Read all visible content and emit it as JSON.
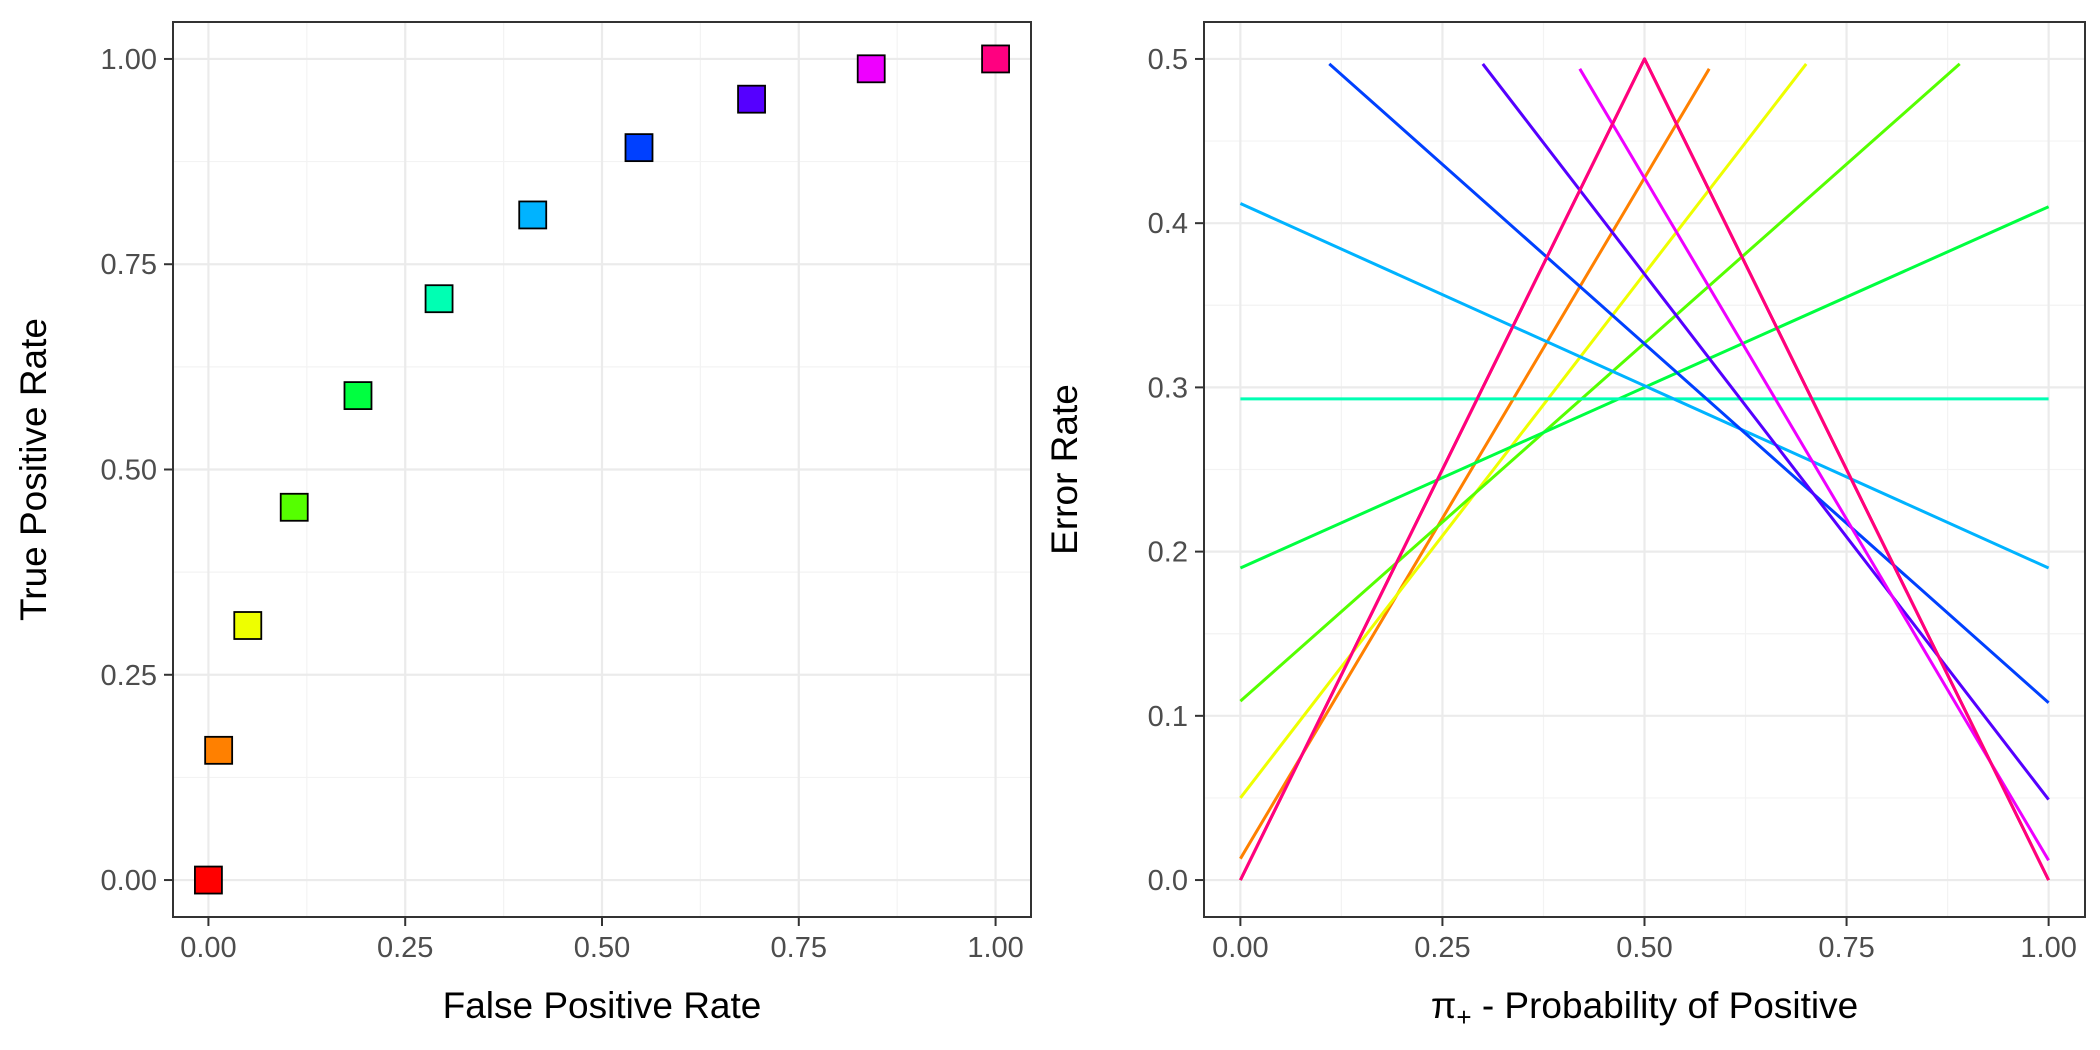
{
  "chart_data": [
    {
      "type": "scatter",
      "xlabel": "False Positive Rate",
      "ylabel": "True Positive Rate",
      "xlim": [
        -0.045,
        1.045
      ],
      "ylim": [
        -0.045,
        1.045
      ],
      "xticks": [
        0,
        0.25,
        0.5,
        0.75,
        1
      ],
      "xtick_labels": [
        "0.00",
        "0.25",
        "0.50",
        "0.75",
        "1.00"
      ],
      "yticks": [
        0,
        0.25,
        0.5,
        0.75,
        1
      ],
      "ytick_labels": [
        "0.00",
        "0.25",
        "0.50",
        "0.75",
        "1.00"
      ],
      "grid": true,
      "marker": "square",
      "points": [
        {
          "x": 0.0,
          "y": 0.0,
          "color": "#FF0000"
        },
        {
          "x": 0.013,
          "y": 0.158,
          "color": "#FF8000"
        },
        {
          "x": 0.05,
          "y": 0.31,
          "color": "#EEFF00"
        },
        {
          "x": 0.109,
          "y": 0.454,
          "color": "#55FF00"
        },
        {
          "x": 0.19,
          "y": 0.59,
          "color": "#00FF40"
        },
        {
          "x": 0.293,
          "y": 0.708,
          "color": "#00FFB3"
        },
        {
          "x": 0.412,
          "y": 0.81,
          "color": "#00B3FF"
        },
        {
          "x": 0.547,
          "y": 0.892,
          "color": "#0040FF"
        },
        {
          "x": 0.69,
          "y": 0.951,
          "color": "#5500FF"
        },
        {
          "x": 0.842,
          "y": 0.988,
          "color": "#EE00FF"
        },
        {
          "x": 1.0,
          "y": 1.0,
          "color": "#FF0080"
        }
      ]
    },
    {
      "type": "line",
      "xlabel": "π₊ - Probability of Positive",
      "xlabel_symbol": "π",
      "xlabel_subscript": "+",
      "xlabel_rest": " - Probability of Positive",
      "ylabel": "Error Rate",
      "xlim": [
        -0.045,
        1.045
      ],
      "ylim": [
        -0.0225,
        0.5225
      ],
      "xticks": [
        0,
        0.25,
        0.5,
        0.75,
        1
      ],
      "xtick_labels": [
        "0.00",
        "0.25",
        "0.50",
        "0.75",
        "1.00"
      ],
      "yticks": [
        0,
        0.1,
        0.2,
        0.3,
        0.4,
        0.5
      ],
      "ytick_labels": [
        "0.0",
        "0.1",
        "0.2",
        "0.3",
        "0.4",
        "0.5"
      ],
      "grid": true,
      "series": [
        {
          "color": "#FF0000",
          "x": [
            0.0,
            0.5,
            1.0
          ],
          "y": [
            0.0,
            0.5,
            0.0
          ]
        },
        {
          "color": "#FF8000",
          "x": [
            0.0,
            0.58
          ],
          "y": [
            0.013,
            0.494
          ]
        },
        {
          "color": "#EEFF00",
          "x": [
            0.0,
            0.7
          ],
          "y": [
            0.05,
            0.497
          ]
        },
        {
          "color": "#55FF00",
          "x": [
            0.0,
            0.89
          ],
          "y": [
            0.109,
            0.497
          ]
        },
        {
          "color": "#00FF40",
          "x": [
            0.0,
            1.0
          ],
          "y": [
            0.19,
            0.41
          ]
        },
        {
          "color": "#00FFB3",
          "x": [
            0.0,
            1.0
          ],
          "y": [
            0.293,
            0.293
          ]
        },
        {
          "color": "#00B3FF",
          "x": [
            0.0,
            1.0
          ],
          "y": [
            0.412,
            0.19
          ]
        },
        {
          "color": "#0040FF",
          "x": [
            0.11,
            1.0
          ],
          "y": [
            0.497,
            0.108
          ]
        },
        {
          "color": "#5500FF",
          "x": [
            0.3,
            1.0
          ],
          "y": [
            0.497,
            0.049
          ]
        },
        {
          "color": "#EE00FF",
          "x": [
            0.42,
            1.0
          ],
          "y": [
            0.494,
            0.012
          ]
        },
        {
          "color": "#FF0080",
          "x": [
            0.0,
            0.5,
            1.0
          ],
          "y": [
            0.0,
            0.5,
            0.0
          ]
        }
      ]
    }
  ]
}
